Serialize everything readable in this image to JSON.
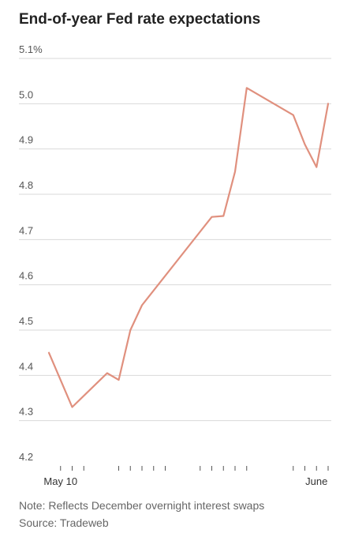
{
  "chart_data": {
    "type": "line",
    "title": "End-of-year Fed rate expectations",
    "xlabel": "",
    "ylabel": "",
    "ylim": [
      4.2,
      5.1
    ],
    "y_ticks": [
      "4.2",
      "4.3",
      "4.4",
      "4.5",
      "4.6",
      "4.7",
      "4.8",
      "4.9",
      "5.0",
      "5.1%"
    ],
    "y_tick_values": [
      4.2,
      4.3,
      4.4,
      4.5,
      4.6,
      4.7,
      4.8,
      4.9,
      5.0,
      5.1
    ],
    "x_tick_labels": [
      {
        "label": "May 10",
        "x": "2023-05-10"
      },
      {
        "label": "June",
        "x": "2023-06-01"
      }
    ],
    "x_tick_marks": [
      "2023-05-10",
      "2023-05-11",
      "2023-05-12",
      "2023-05-15",
      "2023-05-16",
      "2023-05-17",
      "2023-05-18",
      "2023-05-19",
      "2023-05-22",
      "2023-05-23",
      "2023-05-24",
      "2023-05-25",
      "2023-05-26",
      "2023-05-30",
      "2023-05-31",
      "2023-06-01",
      "2023-06-02"
    ],
    "xlim": [
      "2023-05-09",
      "2023-06-02"
    ],
    "grid": true,
    "color": "#e0907e",
    "series": [
      {
        "name": "",
        "points": [
          {
            "x": "2023-05-09",
            "y": 4.45
          },
          {
            "x": "2023-05-11",
            "y": 4.33
          },
          {
            "x": "2023-05-14",
            "y": 4.405
          },
          {
            "x": "2023-05-15",
            "y": 4.39
          },
          {
            "x": "2023-05-16",
            "y": 4.5
          },
          {
            "x": "2023-05-17",
            "y": 4.555
          },
          {
            "x": "2023-05-23",
            "y": 4.75
          },
          {
            "x": "2023-05-24",
            "y": 4.752
          },
          {
            "x": "2023-05-25",
            "y": 4.85
          },
          {
            "x": "2023-05-26",
            "y": 5.035
          },
          {
            "x": "2023-05-30",
            "y": 4.975
          },
          {
            "x": "2023-05-31",
            "y": 4.91
          },
          {
            "x": "2023-06-01",
            "y": 4.86
          },
          {
            "x": "2023-06-02",
            "y": 5.0
          }
        ]
      }
    ]
  },
  "footer": {
    "note": "Note: Reflects December overnight interest swaps",
    "source": "Source: Tradeweb"
  }
}
